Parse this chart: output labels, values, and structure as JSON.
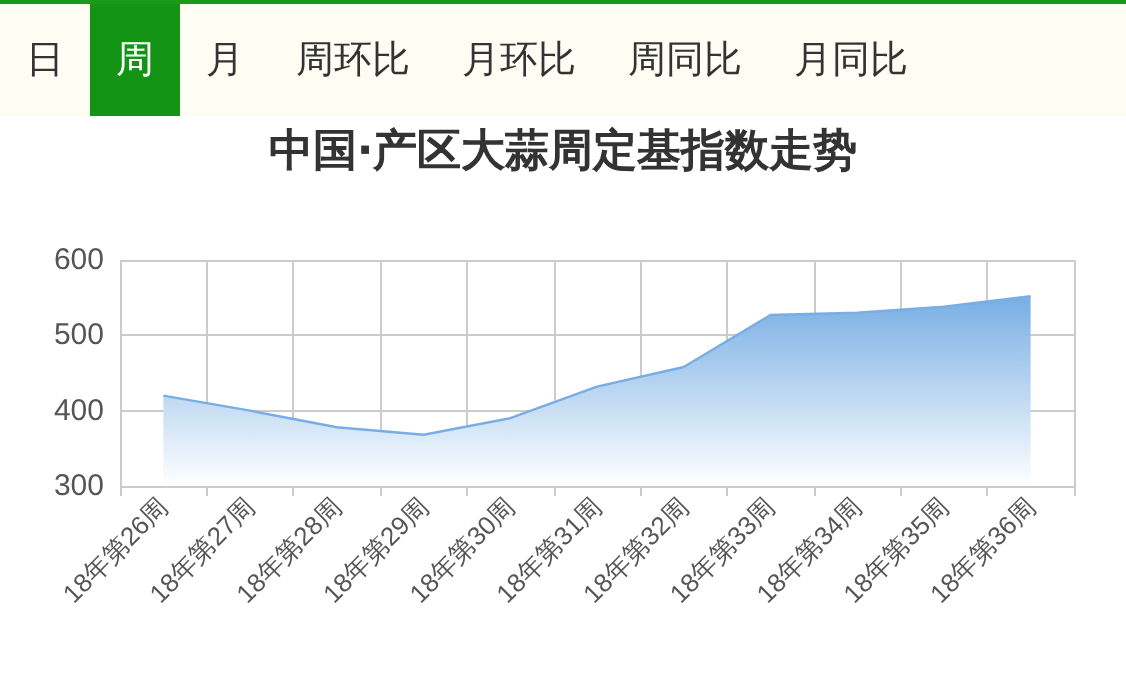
{
  "chart_data": {
    "type": "area",
    "title": "中国·产区大蒜周定基指数走势",
    "annotations": [
      "日",
      "周",
      "月",
      "周环比",
      "月环比",
      "周同比",
      "月同比"
    ],
    "categories": [
      "18年第26周",
      "18年第27周",
      "18年第28周",
      "18年第29周",
      "18年第30周",
      "18年第31周",
      "18年第32周",
      "18年第33周",
      "18年第34周",
      "18年第35周",
      "18年第36周"
    ],
    "series": [
      {
        "color": "#78aee4",
        "values": [
          420,
          400,
          378,
          368,
          390,
          432,
          458,
          527,
          530,
          538,
          552
        ]
      }
    ],
    "ylim": [
      300,
      600
    ],
    "yticks": [
      300,
      400,
      500,
      600
    ],
    "grid": true,
    "marker": "none"
  }
}
